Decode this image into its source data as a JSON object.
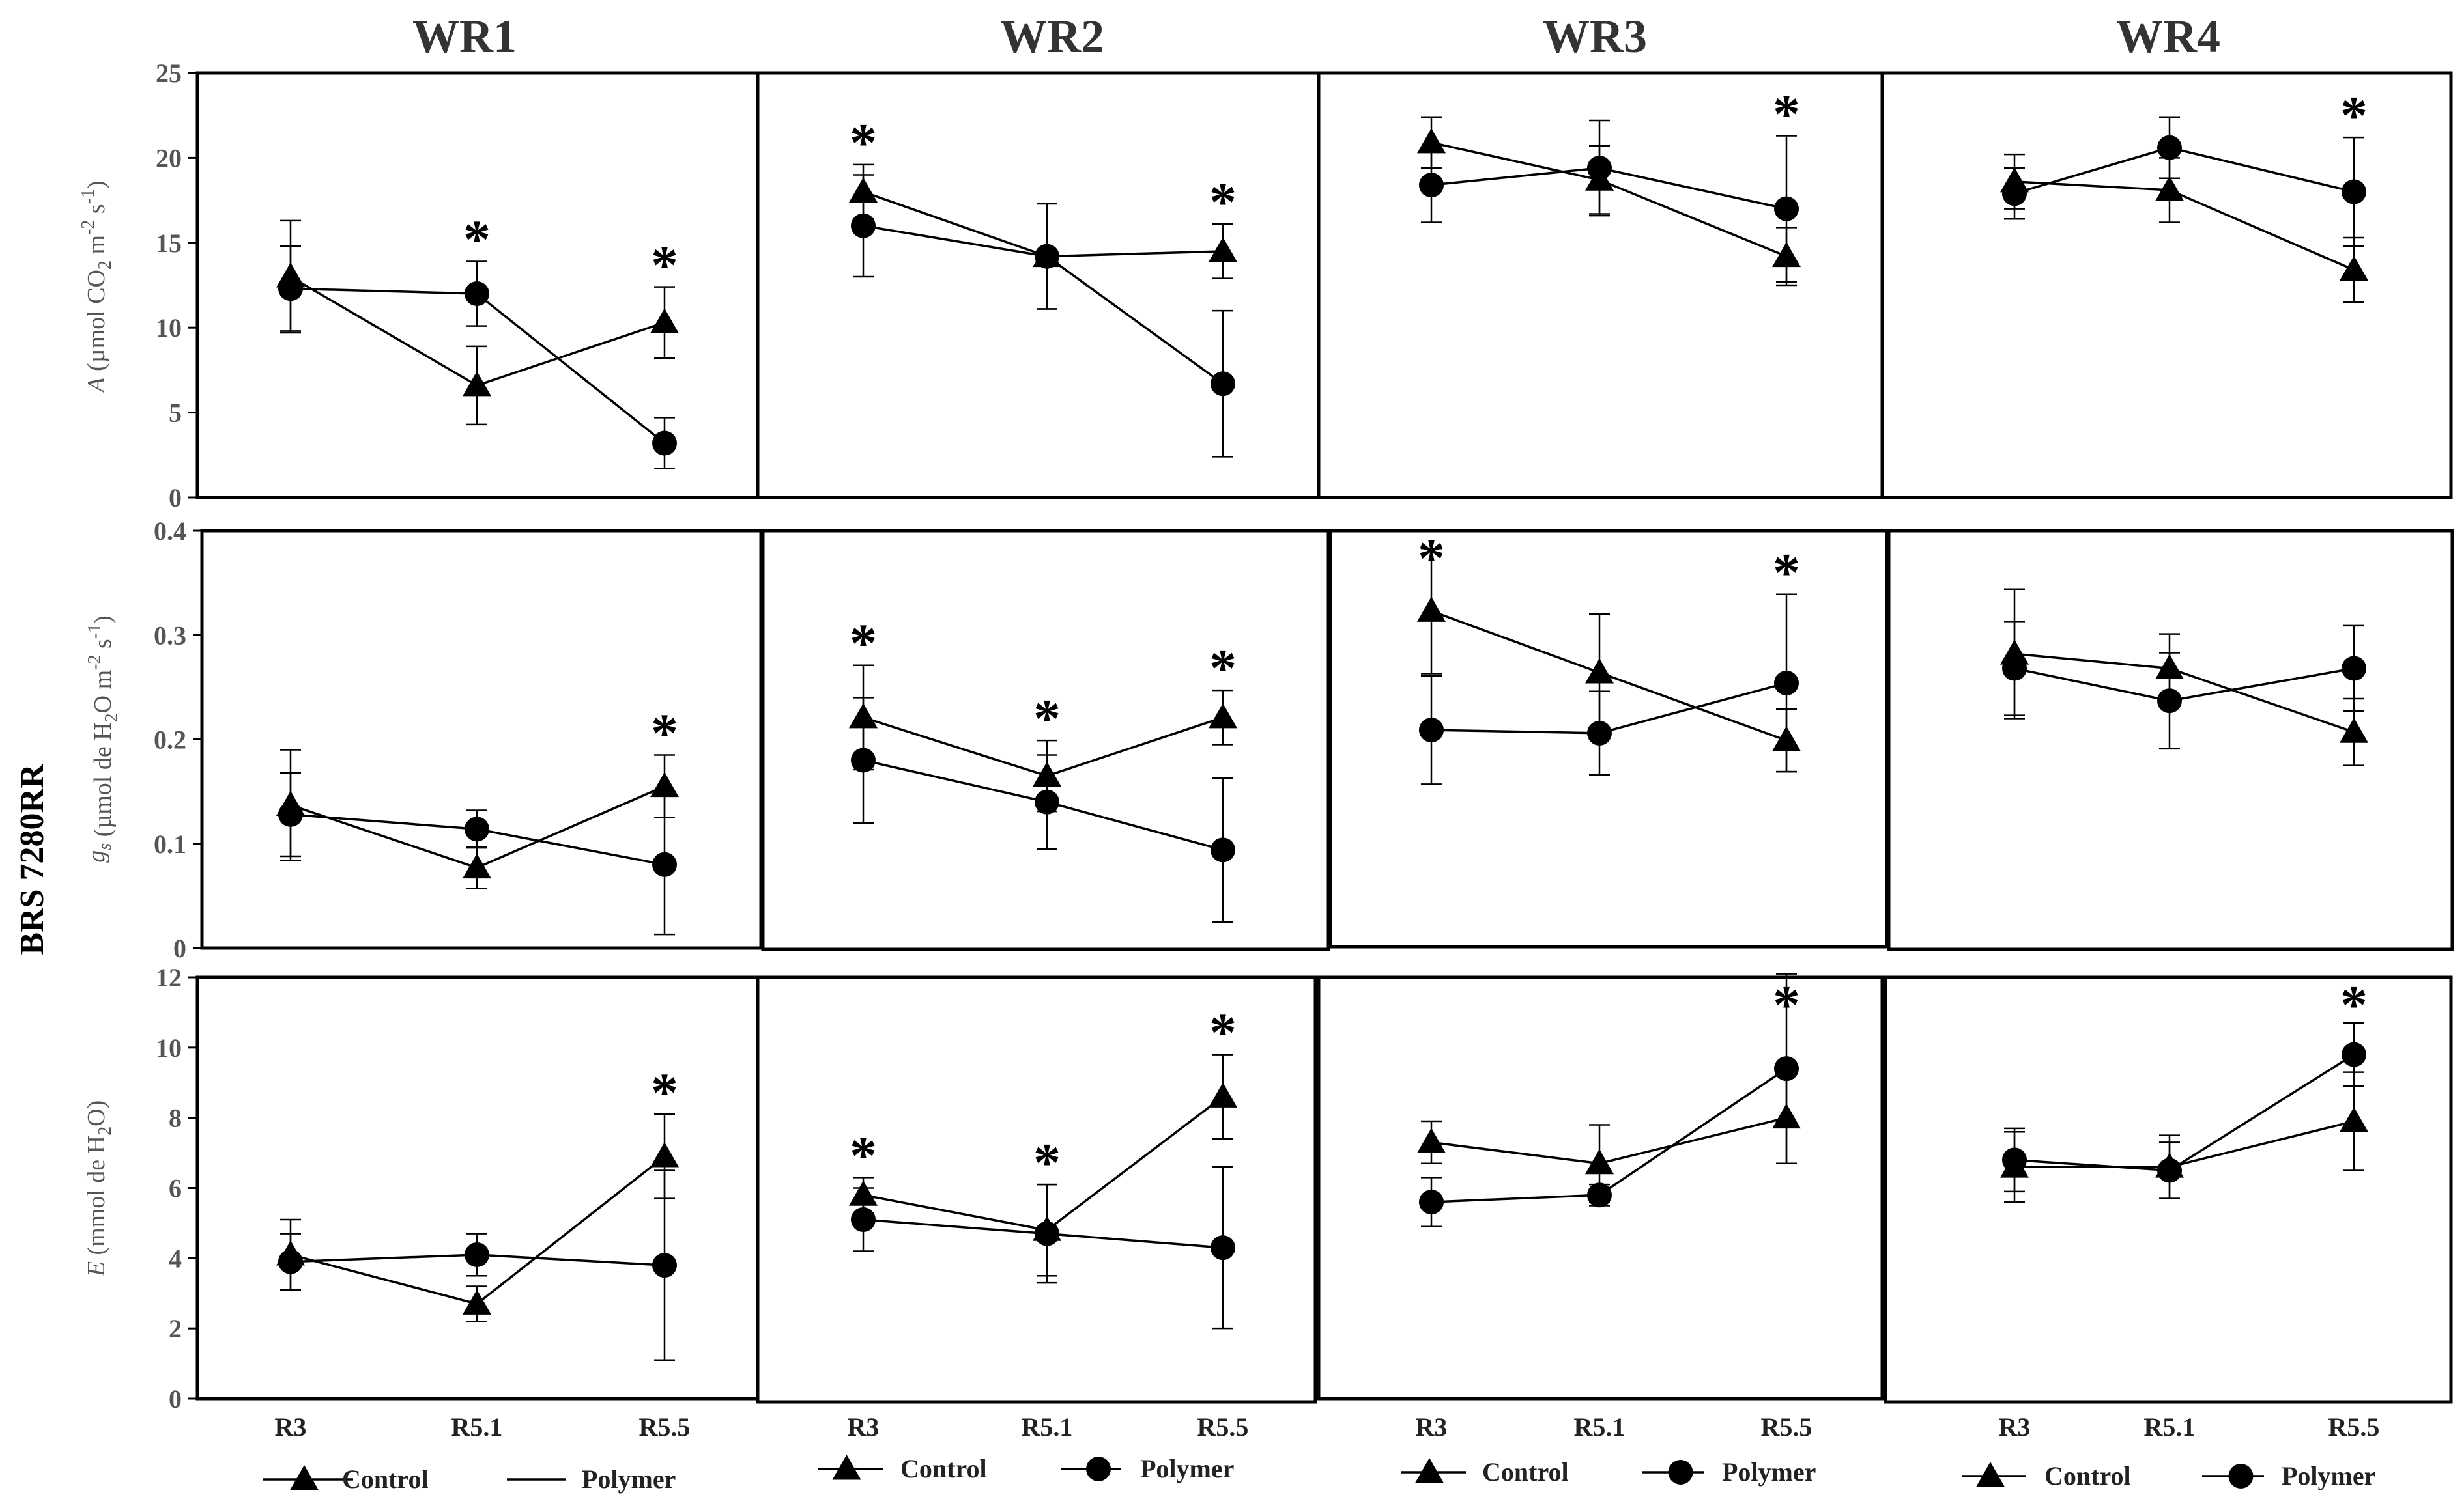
{
  "cultivar": "BRS 7280RR",
  "columns": [
    "WR1",
    "WR2",
    "WR3",
    "WR4"
  ],
  "x_categories": [
    "R3",
    "R5.1",
    "R5.5"
  ],
  "series_names": [
    "Control",
    "Polymer"
  ],
  "legend_entries": [
    [
      {
        "name": "Control",
        "marker": "triangle"
      },
      {
        "name": "Polymer",
        "marker": "none"
      }
    ],
    [
      {
        "name": "Control",
        "marker": "triangle"
      },
      {
        "name": "Polymer",
        "marker": "circle"
      }
    ],
    [
      {
        "name": "Control",
        "marker": "triangle"
      },
      {
        "name": "Polymer",
        "marker": "circle"
      }
    ],
    [
      {
        "name": "Control",
        "marker": "triangle"
      },
      {
        "name": "Polymer",
        "marker": "circle"
      }
    ]
  ],
  "colors": {
    "line": "#000000",
    "frame": "#000000",
    "text": "#333333"
  },
  "chart_data": [
    {
      "type": "line",
      "row": "A",
      "ylabel": "A (µmol CO2 m-2 s-1)",
      "ylabel_parts": {
        "italic": "A",
        "pre": " (µmol CO",
        "sub": "2",
        "mid1": " m",
        "sup1": "-2",
        "mid2": " s",
        "sup2": "-1",
        "post": ")"
      },
      "ylim": [
        0,
        25
      ],
      "yticks": [
        0,
        5,
        10,
        15,
        20,
        25
      ],
      "yticklabels": [
        "0",
        "5",
        "10",
        "15",
        "20",
        "25"
      ],
      "panels": [
        {
          "column": "WR1",
          "series": [
            {
              "name": "Control",
              "values": [
                13.0,
                6.6,
                10.3
              ],
              "errors": [
                3.3,
                2.3,
                2.1
              ]
            },
            {
              "name": "Polymer",
              "values": [
                12.3,
                12.0,
                3.2
              ],
              "errors": [
                2.5,
                1.9,
                1.5
              ]
            }
          ],
          "significant": [
            false,
            true,
            true
          ]
        },
        {
          "column": "WR2",
          "series": [
            {
              "name": "Control",
              "values": [
                18.0,
                14.2,
                14.5
              ],
              "errors": [
                1.6,
                3.1,
                1.6
              ]
            },
            {
              "name": "Polymer",
              "values": [
                16.0,
                14.2,
                6.7
              ],
              "errors": [
                3.0,
                3.1,
                4.3
              ]
            }
          ],
          "significant": [
            true,
            false,
            true
          ]
        },
        {
          "column": "WR3",
          "series": [
            {
              "name": "Control",
              "values": [
                20.9,
                18.7,
                14.2
              ],
              "errors": [
                1.5,
                2.0,
                1.7
              ]
            },
            {
              "name": "Polymer",
              "values": [
                18.4,
                19.4,
                17.0
              ],
              "errors": [
                2.2,
                2.8,
                4.3
              ]
            }
          ],
          "significant": [
            false,
            false,
            true
          ]
        },
        {
          "column": "WR4",
          "series": [
            {
              "name": "Control",
              "values": [
                18.6,
                18.1,
                13.4
              ],
              "errors": [
                1.6,
                1.9,
                1.9
              ]
            },
            {
              "name": "Polymer",
              "values": [
                17.9,
                20.6,
                18.0
              ],
              "errors": [
                1.5,
                1.8,
                3.2
              ]
            }
          ],
          "significant": [
            false,
            false,
            true
          ]
        }
      ]
    },
    {
      "type": "line",
      "row": "gs",
      "ylabel": "gs (µmol de H2O m-2 s-1)",
      "ylabel_parts": {
        "italic": "g",
        "isub": "s",
        "pre": " (µmol de H",
        "sub": "2",
        "mid1": "O m",
        "sup1": "-2",
        "mid2": " s",
        "sup2": "-1",
        "post": ")"
      },
      "ylim": [
        0,
        0.4
      ],
      "yticks": [
        0,
        0.1,
        0.2,
        0.3,
        0.4
      ],
      "yticklabels": [
        "0",
        "0.1",
        "0.2",
        "0.3",
        "0.4"
      ],
      "panels": [
        {
          "column": "WR1",
          "series": [
            {
              "name": "Control",
              "values": [
                0.137,
                0.077,
                0.155
              ],
              "errors": [
                0.053,
                0.02,
                0.03
              ]
            },
            {
              "name": "Polymer",
              "values": [
                0.128,
                0.114,
                0.08
              ],
              "errors": [
                0.04,
                0.018,
                0.067
              ]
            }
          ],
          "significant": [
            false,
            false,
            true
          ]
        },
        {
          "column": "WR2",
          "series": [
            {
              "name": "Control",
              "values": [
                0.221,
                0.165,
                0.221
              ],
              "errors": [
                0.05,
                0.034,
                0.026
              ]
            },
            {
              "name": "Polymer",
              "values": [
                0.18,
                0.14,
                0.094
              ],
              "errors": [
                0.06,
                0.045,
                0.069
              ]
            }
          ],
          "significant": [
            true,
            true,
            true
          ]
        },
        {
          "column": "WR3",
          "series": [
            {
              "name": "Control",
              "values": [
                0.323,
                0.264,
                0.199
              ],
              "errors": [
                0.06,
                0.056,
                0.03
              ]
            },
            {
              "name": "Polymer",
              "values": [
                0.209,
                0.206,
                0.254
              ],
              "errors": [
                0.052,
                0.04,
                0.085
              ]
            }
          ],
          "significant": [
            true,
            false,
            true
          ]
        },
        {
          "column": "WR4",
          "series": [
            {
              "name": "Control",
              "values": [
                0.282,
                0.268,
                0.207
              ],
              "errors": [
                0.062,
                0.033,
                0.032
              ]
            },
            {
              "name": "Polymer",
              "values": [
                0.268,
                0.237,
                0.268
              ],
              "errors": [
                0.045,
                0.046,
                0.041
              ]
            }
          ],
          "significant": [
            false,
            false,
            false
          ]
        }
      ]
    },
    {
      "type": "line",
      "row": "E",
      "ylabel": "E (mmol de H2O)",
      "ylabel_parts": {
        "italic": "E",
        "pre": " (mmol de H",
        "sub": "2",
        "post": "O)"
      },
      "ylim": [
        0,
        12
      ],
      "yticks": [
        0,
        2,
        4,
        6,
        8,
        10,
        12
      ],
      "yticklabels": [
        "0",
        "2",
        "4",
        "6",
        "8",
        "10",
        "12"
      ],
      "panels": [
        {
          "column": "WR1",
          "series": [
            {
              "name": "Control",
              "values": [
                4.1,
                2.7,
                6.9
              ],
              "errors": [
                1.0,
                0.5,
                1.2
              ]
            },
            {
              "name": "Polymer",
              "values": [
                3.9,
                4.1,
                3.8
              ],
              "errors": [
                0.8,
                0.6,
                2.7
              ]
            }
          ],
          "significant": [
            false,
            false,
            true
          ]
        },
        {
          "column": "WR2",
          "series": [
            {
              "name": "Control",
              "values": [
                5.8,
                4.8,
                8.6
              ],
              "errors": [
                0.5,
                1.3,
                1.2
              ]
            },
            {
              "name": "Polymer",
              "values": [
                5.1,
                4.7,
                4.3
              ],
              "errors": [
                0.9,
                1.4,
                2.3
              ]
            }
          ],
          "significant": [
            true,
            true,
            true
          ]
        },
        {
          "column": "WR3",
          "series": [
            {
              "name": "Control",
              "values": [
                7.3,
                6.7,
                8.0
              ],
              "errors": [
                0.6,
                1.1,
                1.3
              ]
            },
            {
              "name": "Polymer",
              "values": [
                5.6,
                5.8,
                9.4
              ],
              "errors": [
                0.7,
                0.3,
                2.7
              ]
            }
          ],
          "significant": [
            false,
            false,
            true
          ]
        },
        {
          "column": "WR4",
          "series": [
            {
              "name": "Control",
              "values": [
                6.6,
                6.6,
                7.9
              ],
              "errors": [
                1.0,
                0.9,
                1.4
              ]
            },
            {
              "name": "Polymer",
              "values": [
                6.8,
                6.5,
                9.8
              ],
              "errors": [
                0.9,
                0.8,
                0.9
              ]
            }
          ],
          "significant": [
            false,
            false,
            true
          ]
        }
      ]
    }
  ]
}
